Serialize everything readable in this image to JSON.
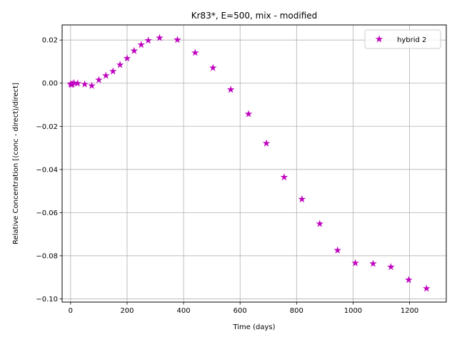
{
  "chart_data": {
    "type": "scatter",
    "title": "Kr83*, E=500, mix - modified",
    "xlabel": "Time (days)",
    "ylabel": "Relative Concentration [(conc - direct)/direct]",
    "xlim": [
      -30,
      1330
    ],
    "ylim": [
      -0.1015,
      0.027
    ],
    "xticks": [
      0,
      200,
      400,
      600,
      800,
      1000,
      1200
    ],
    "xtick_labels": [
      "0",
      "200",
      "400",
      "600",
      "800",
      "1000",
      "1200"
    ],
    "yticks": [
      -0.1,
      -0.08,
      -0.06,
      -0.04,
      -0.02,
      0.0,
      0.02
    ],
    "ytick_labels": [
      "−0.10",
      "−0.08",
      "−0.06",
      "−0.04",
      "−0.02",
      "0.00",
      "0.02"
    ],
    "grid": true,
    "legend_position": "top-right",
    "series": [
      {
        "name": "hybrid 2",
        "color": "#bf00bf",
        "marker": "star",
        "x": [
          0,
          3,
          6,
          12,
          25,
          50,
          75,
          100,
          125,
          150,
          175,
          200,
          225,
          250,
          275,
          315,
          378,
          441,
          504,
          567,
          630,
          693,
          756,
          819,
          882,
          945,
          1008,
          1071,
          1134,
          1197,
          1260
        ],
        "y": [
          -0.0003,
          -0.0008,
          -0.0004,
          0.0001,
          -0.0001,
          -0.0005,
          -0.0012,
          0.0015,
          0.0035,
          0.0055,
          0.0085,
          0.0115,
          0.015,
          0.0178,
          0.0198,
          0.021,
          0.0201,
          0.0141,
          0.0071,
          -0.003,
          -0.0143,
          -0.0279,
          -0.0436,
          -0.0538,
          -0.0652,
          -0.0775,
          -0.0834,
          -0.0837,
          -0.0852,
          -0.0912,
          -0.0952
        ]
      }
    ]
  }
}
